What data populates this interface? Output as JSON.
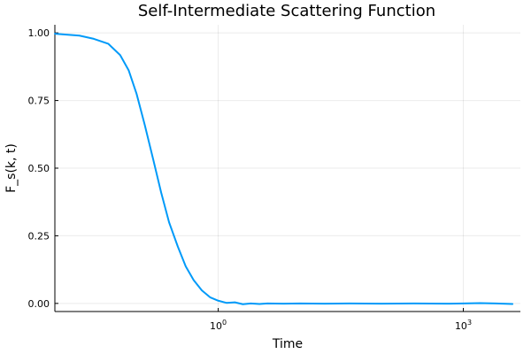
{
  "chart_data": {
    "type": "line",
    "title": "Self-Intermediate Scattering Function",
    "xlabel": "Time",
    "ylabel": "F_s(k, t)",
    "x_scale": "log10",
    "xlim": [
      0.01,
      5000
    ],
    "ylim": [
      -0.03,
      1.03
    ],
    "x_ticks": [
      {
        "value": 1,
        "base": "10",
        "exponent": "0"
      },
      {
        "value": 1000,
        "base": "10",
        "exponent": "3"
      }
    ],
    "y_ticks": [
      {
        "value": 0.0,
        "label": "0.00"
      },
      {
        "value": 0.25,
        "label": "0.25"
      },
      {
        "value": 0.5,
        "label": "0.50"
      },
      {
        "value": 0.75,
        "label": "0.75"
      },
      {
        "value": 1.0,
        "label": "1.00"
      }
    ],
    "grid": true,
    "legend": "none",
    "series": [
      {
        "color": "#009af9",
        "x": [
          0.01,
          0.02,
          0.03,
          0.045,
          0.063,
          0.08,
          0.1,
          0.126,
          0.16,
          0.2,
          0.25,
          0.32,
          0.4,
          0.5,
          0.63,
          0.8,
          1.0,
          1.26,
          1.6,
          2.0,
          2.5,
          3.2,
          4.0,
          6.3,
          10,
          20,
          40,
          100,
          250,
          630,
          1000,
          1600,
          2500,
          4000
        ],
        "y": [
          0.997,
          0.99,
          0.978,
          0.96,
          0.918,
          0.862,
          0.775,
          0.66,
          0.532,
          0.41,
          0.3,
          0.21,
          0.137,
          0.086,
          0.048,
          0.022,
          0.01,
          0.002,
          0.004,
          -0.003,
          0.0,
          -0.002,
          0.0,
          -0.001,
          0.0,
          -0.001,
          0.0,
          -0.001,
          0.0,
          -0.001,
          0.0,
          0.001,
          0.0,
          -0.002
        ]
      }
    ]
  }
}
